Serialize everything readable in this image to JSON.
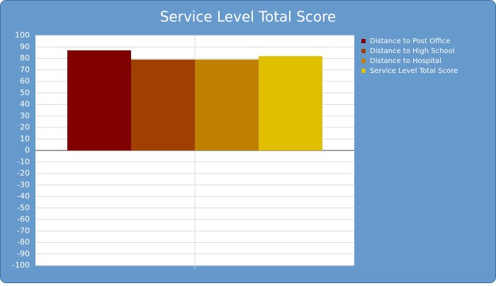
{
  "chart_data": {
    "type": "bar",
    "title": "Service Level Total Score",
    "categories": [
      null
    ],
    "series": [
      {
        "name": "Distance to Post Office",
        "color": "#800000",
        "values": [
          87
        ]
      },
      {
        "name": "Distance to High School",
        "color": "#a04000",
        "values": [
          79
        ]
      },
      {
        "name": "Distance to Hospital",
        "color": "#c08000",
        "values": [
          79
        ]
      },
      {
        "name": "Service Level Total Score",
        "color": "#e0c000",
        "values": [
          82
        ]
      }
    ],
    "ylim": [
      -100,
      100
    ],
    "yticks": [
      -100,
      -90,
      -80,
      -70,
      -60,
      -50,
      -40,
      -30,
      -20,
      -10,
      0,
      10,
      20,
      30,
      40,
      50,
      60,
      70,
      80,
      90,
      100
    ],
    "grid": true,
    "legend": "right"
  }
}
